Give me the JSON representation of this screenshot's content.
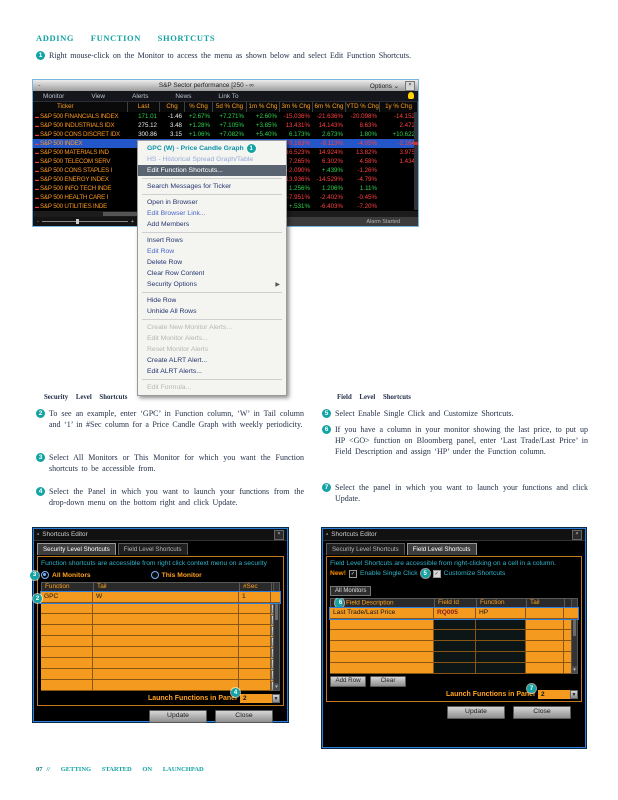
{
  "page": {
    "heading": "ADDING FUNCTION SHORTCUTS",
    "footer_page": "07",
    "footer_text": "// GETTING STARTED ON LAUNCHPAD"
  },
  "intro_step": {
    "num": "1",
    "text": "Right mouse-click on the Monitor to access the menu as shown below and select Edit Function Shortcuts."
  },
  "sections": {
    "left": {
      "heading": "Security Level Shortcuts",
      "steps": [
        {
          "num": "2",
          "text": "To see an example, enter ‘GPC’ in Function column, ‘W’ in Tail column and ‘1’ in #Sec column for a Price Candle Graph with weekly periodicity."
        },
        {
          "num": "3",
          "text": "Select All Monitors or This Monitor for which you want the Function shortcuts to be accessible from."
        },
        {
          "num": "4",
          "text": "Select the Panel in which you want to launch your functions from the drop-down menu on the bottom right and click Update."
        }
      ]
    },
    "right": {
      "heading": "Field Level Shortcuts",
      "steps": [
        {
          "num": "5",
          "text": "Select Enable Single Click and Customize Shortcuts."
        },
        {
          "num": "6",
          "text": "If you have a column in your monitor showing the last price, to put up HP <GO> function on Bloomberg panel, enter ‘Last Trade/Last Price’ in Field Description and assign ‘HP’ under the Function column."
        },
        {
          "num": "7",
          "text": "Select the panel in which you want to launch your functions and click Update."
        }
      ]
    }
  },
  "monitor": {
    "title": "S&P Sector performance [250",
    "title_suffix": "- ∞",
    "options_label": "Options ⌄",
    "min_glyph": "-",
    "close_glyph": "×",
    "menu": [
      "Monitor",
      "View",
      "Alerts",
      "News",
      "Link To"
    ],
    "columns": [
      "Ticker",
      "Last",
      "Chg",
      "% Chg",
      "5d % Chg",
      "1m % Chg",
      "3m % Chg",
      "6m % Chg",
      "YTD % Chg",
      "1y % Chg"
    ],
    "rows": [
      {
        "ticker": "S&P 500 FINANCIALS INDEX",
        "sel": false,
        "vals": [
          [
            "171.01",
            "up"
          ],
          [
            "-1.46",
            "wh"
          ],
          [
            "+2.67%",
            "up"
          ],
          [
            "+7.271%",
            "up"
          ],
          [
            "+2.60%",
            "up"
          ],
          [
            "-15.036%",
            "dn"
          ],
          [
            "-21.636%",
            "dn"
          ],
          [
            "-20.098%",
            "dn"
          ],
          [
            "-14.152",
            "dn"
          ]
        ]
      },
      {
        "ticker": "S&P 500 INDUSTRIALS IDX",
        "sel": false,
        "vals": [
          [
            "275.12",
            "wh"
          ],
          [
            "3.48",
            "wh"
          ],
          [
            "+1.28%",
            "up"
          ],
          [
            "+7.105%",
            "up"
          ],
          [
            "+3.85%",
            "up"
          ],
          [
            "13.431%",
            "dn"
          ],
          [
            "14.143%",
            "dn"
          ],
          [
            "8.63%",
            "dn"
          ],
          [
            "2.472",
            "dn"
          ]
        ]
      },
      {
        "ticker": "S&P 500 CONS DISCRET IDX",
        "sel": false,
        "vals": [
          [
            "300.86",
            "wh"
          ],
          [
            "3.15",
            "wh"
          ],
          [
            "+1.06%",
            "up"
          ],
          [
            "+7.082%",
            "up"
          ],
          [
            "+5.40%",
            "up"
          ],
          [
            "6.173%",
            "up"
          ],
          [
            "2.673%",
            "up"
          ],
          [
            "1.80%",
            "up"
          ],
          [
            "+10.622",
            "up"
          ]
        ]
      },
      {
        "ticker": "S&P 500 INDEX",
        "sel": true,
        "vals": [
          [
            "1,304.4",
            "wh"
          ],
          [
            "+37.4",
            "wh"
          ],
          [
            "+2.9%",
            "up"
          ],
          [
            "+4.46%",
            "up"
          ],
          [
            "+2.90%",
            "up"
          ],
          [
            "-9.163%",
            "dn"
          ],
          [
            "-9.113%",
            "dn"
          ],
          [
            "-4.05%",
            "dn"
          ],
          [
            "-2.164",
            "dn"
          ]
        ]
      },
      {
        "ticker": "S&P 500 MATERIALS IND",
        "sel": false,
        "vals": [
          [
            "",
            "wh"
          ],
          [
            "",
            "wh"
          ],
          [
            "",
            "wh"
          ],
          [
            "9%",
            "up"
          ],
          [
            "1.49%",
            "up"
          ],
          [
            "16.523%",
            "dn"
          ],
          [
            "14.924%",
            "dn"
          ],
          [
            "13.82%",
            "dn"
          ],
          [
            "3.975",
            "dn"
          ]
        ]
      },
      {
        "ticker": "S&P 500 TELECOM SERV",
        "sel": false,
        "vals": [
          [
            "",
            "wh"
          ],
          [
            "",
            "wh"
          ],
          [
            "",
            "wh"
          ],
          [
            "7%",
            "up"
          ],
          [
            "+1.27%",
            "up"
          ],
          [
            "7.265%",
            "dn"
          ],
          [
            "6.302%",
            "dn"
          ],
          [
            "4.58%",
            "dn"
          ],
          [
            "1.434",
            "dn"
          ]
        ]
      },
      {
        "ticker": "S&P 500 CONS STAPLES I",
        "sel": false,
        "vals": [
          [
            "",
            "wh"
          ],
          [
            "",
            "wh"
          ],
          [
            "",
            "wh"
          ],
          [
            "6%",
            "up"
          ],
          [
            "+2.11%",
            "up"
          ],
          [
            "-2.090%",
            "dn"
          ],
          [
            "+.439%",
            "up"
          ],
          [
            "-1.26%",
            "dn"
          ],
          [
            "",
            ""
          ]
        ]
      },
      {
        "ticker": "S&P 500 ENERGY INDEX",
        "sel": false,
        "vals": [
          [
            "",
            "wh"
          ],
          [
            "",
            "wh"
          ],
          [
            "",
            "wh"
          ],
          [
            "0%",
            "up"
          ],
          [
            "-.11%",
            "dn"
          ],
          [
            "-13.936%",
            "dn"
          ],
          [
            "-14.529%",
            "dn"
          ],
          [
            "-4.79%",
            "dn"
          ],
          [
            "",
            ""
          ]
        ]
      },
      {
        "ticker": "S&P 500 INFO TECH INDE",
        "sel": false,
        "vals": [
          [
            "",
            "wh"
          ],
          [
            "",
            "wh"
          ],
          [
            "",
            "wh"
          ],
          [
            "1%",
            "up"
          ],
          [
            "+6.16%",
            "up"
          ],
          [
            "1.256%",
            "up"
          ],
          [
            "1.206%",
            "up"
          ],
          [
            "1.11%",
            "up"
          ],
          [
            "",
            ""
          ]
        ]
      },
      {
        "ticker": "S&P 500 HEALTH CARE I",
        "sel": false,
        "vals": [
          [
            "",
            "wh"
          ],
          [
            "",
            "wh"
          ],
          [
            "",
            "wh"
          ],
          [
            "9%",
            "up"
          ],
          [
            "+1.09%",
            "up"
          ],
          [
            "-7.951%",
            "dn"
          ],
          [
            "-2.402%",
            "dn"
          ],
          [
            "-0.45%",
            "dn"
          ],
          [
            "",
            ""
          ]
        ]
      },
      {
        "ticker": "S&P 500 UTILITIES INDE",
        "sel": false,
        "vals": [
          [
            "",
            "wh"
          ],
          [
            "",
            "wh"
          ],
          [
            "",
            "wh"
          ],
          [
            "2%",
            "up"
          ],
          [
            "+2.02%",
            "up"
          ],
          [
            "+.531%",
            "up"
          ],
          [
            "-6.403%",
            "dn"
          ],
          [
            "-7.20%",
            "dn"
          ],
          [
            "",
            ""
          ]
        ]
      }
    ],
    "status": "Alarm Started",
    "zoom_minus": "-",
    "zoom_plus": "+"
  },
  "context_menu": {
    "items": [
      {
        "label": "GPC (W) - Price Candle Graph",
        "style": "teal",
        "badge": "1"
      },
      {
        "label": "HS - Historical Spread Graph/Table",
        "style": "bluedim"
      },
      {
        "label": "Edit Function Shortcuts...",
        "style": "hl"
      },
      {
        "sep": true
      },
      {
        "label": "Search Messages for Ticker"
      },
      {
        "sep": true
      },
      {
        "label": "Open in Browser"
      },
      {
        "label": "Edit Browser Link...",
        "style": "blue"
      },
      {
        "label": "Add Members"
      },
      {
        "sep": true
      },
      {
        "label": "Insert Rows"
      },
      {
        "label": "Edit Row",
        "style": "blue"
      },
      {
        "label": "Delete Row"
      },
      {
        "label": "Clear Row Content"
      },
      {
        "label": "Security Options",
        "submenu": true
      },
      {
        "sep": true
      },
      {
        "label": "Hide Row"
      },
      {
        "label": "Unhide All Rows"
      },
      {
        "sep": true
      },
      {
        "label": "Create New Monitor Alerts...",
        "style": "dis"
      },
      {
        "label": "Edit Monitor Alerts...",
        "style": "dis"
      },
      {
        "label": "Reset Monitor Alerts",
        "style": "dis"
      },
      {
        "label": "Create ALRT Alert..."
      },
      {
        "label": "Edit ALRT Alerts..."
      },
      {
        "sep": true
      },
      {
        "label": "Edit Formula...",
        "style": "dis"
      }
    ]
  },
  "dialog_left": {
    "title": "Shortcuts Editor",
    "close_glyph": "×",
    "tabs": [
      "Security Level Shortcuts",
      "Field Level Shortcuts"
    ],
    "active_tab": 0,
    "description": "Function shortcuts are accessible from right click context menu on a security",
    "radios": [
      "All Monitors",
      "This Monitor"
    ],
    "radio_selected": 0,
    "badge_radio": "3",
    "badge_row": "2",
    "badge_launch": "4",
    "columns": [
      "Function",
      "Tail",
      "#Sec"
    ],
    "rows": [
      [
        "GPC",
        "W",
        "1"
      ],
      [
        "",
        "",
        ""
      ],
      [
        "",
        "",
        ""
      ],
      [
        "",
        "",
        ""
      ],
      [
        "",
        "",
        ""
      ],
      [
        "",
        "",
        ""
      ],
      [
        "",
        "",
        ""
      ],
      [
        "",
        "",
        ""
      ],
      [
        "",
        "",
        ""
      ]
    ],
    "launch_label": "Launch Functions in Panel",
    "launch_value": "2",
    "update_label": "Update",
    "close_label": "Close"
  },
  "dialog_right": {
    "title": "Shortcuts Editor",
    "close_glyph": "×",
    "tabs": [
      "Security Level Shortcuts",
      "Field Level Shortcuts"
    ],
    "active_tab": 1,
    "description": "Field Level Shortcuts are accessible from right-clicking on a cell in a column.",
    "new_label": "New!",
    "checkbox1": "Enable Single Click",
    "checkbox2": "Customize Shortcuts",
    "badge_check": "5",
    "badge_header": "6",
    "badge_launch": "7",
    "subtab": "All Monitors",
    "columns": [
      "Field Description",
      "Field Id",
      "Function",
      "Tail"
    ],
    "rows": [
      [
        "Last Trade/Last Price",
        "RQ005",
        "HP",
        ""
      ],
      [
        "",
        "",
        "",
        ""
      ],
      [
        "",
        "",
        "",
        ""
      ],
      [
        "",
        "",
        "",
        ""
      ],
      [
        "",
        "",
        "",
        ""
      ],
      [
        "",
        "",
        "",
        ""
      ]
    ],
    "addrow_label": "Add Row",
    "clear_label": "Clear",
    "launch_label": "Launch Functions in Panel",
    "launch_value": "2",
    "update_label": "Update",
    "close_label": "Close"
  },
  "colors": {
    "accent_teal": "#14a3a3",
    "amber": "#ffa21e",
    "orange_row": "#f49b1f",
    "green": "#2fd24a",
    "red": "#ff4040",
    "selected_row_blue": "#2356c9",
    "menu_highlight": "#5a6470"
  }
}
